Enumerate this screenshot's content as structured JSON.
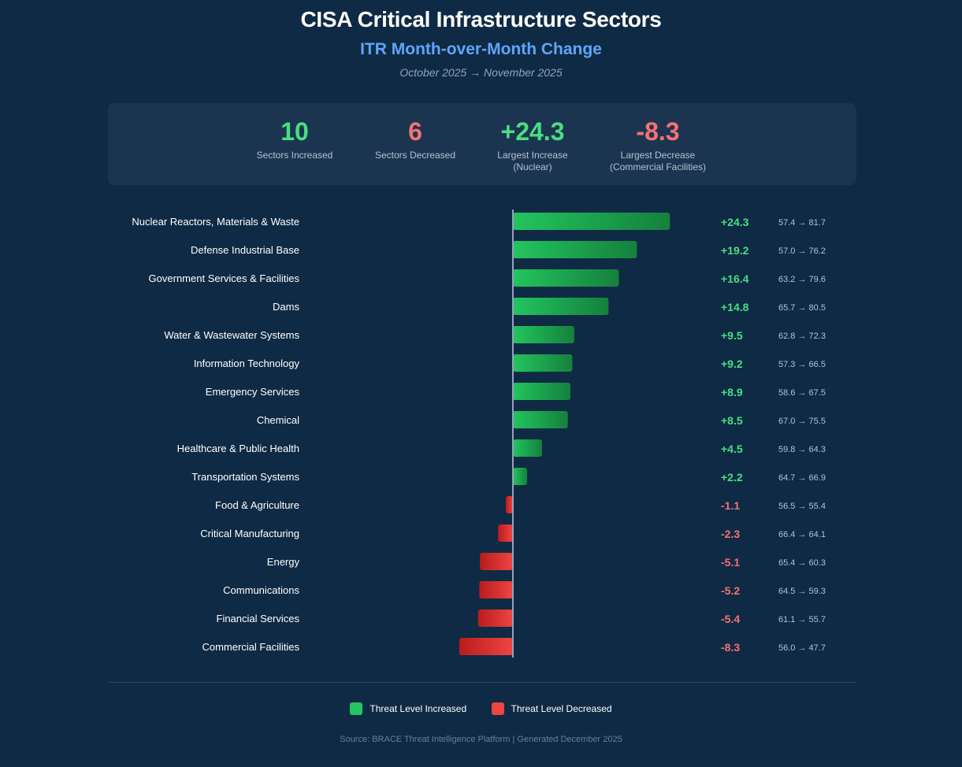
{
  "header": {
    "title": "CISA Critical Infrastructure Sectors",
    "subtitle": "ITR Month-over-Month Change",
    "period": "October 2025 → November 2025"
  },
  "summary": {
    "increased": {
      "value": "10",
      "label": "Sectors Increased"
    },
    "decreased": {
      "value": "6",
      "label": "Sectors Decreased"
    },
    "largest_increase": {
      "value": "+24.3",
      "label": "Largest Increase",
      "sublabel": "(Nuclear)"
    },
    "largest_decrease": {
      "value": "-8.3",
      "label": "Largest Decrease",
      "sublabel": "(Commercial Facilities)"
    }
  },
  "chart_data": {
    "type": "bar",
    "orientation": "horizontal",
    "title": "ITR Month-over-Month Change",
    "categories": [
      "Nuclear Reactors, Materials & Waste",
      "Defense Industrial Base",
      "Government Services & Facilities",
      "Dams",
      "Water & Wastewater Systems",
      "Information Technology",
      "Emergency Services",
      "Chemical",
      "Healthcare & Public Health",
      "Transportation Systems",
      "Food & Agriculture",
      "Critical Manufacturing",
      "Energy",
      "Communications",
      "Financial Services",
      "Commercial Facilities"
    ],
    "values": [
      24.3,
      19.2,
      16.4,
      14.8,
      9.5,
      9.2,
      8.9,
      8.5,
      4.5,
      2.2,
      -1.1,
      -2.3,
      -5.1,
      -5.2,
      -5.4,
      -8.3
    ],
    "change_labels": [
      "+24.3",
      "+19.2",
      "+16.4",
      "+14.8",
      "+9.5",
      "+9.2",
      "+8.9",
      "+8.5",
      "+4.5",
      "+2.2",
      "-1.1",
      "-2.3",
      "-5.1",
      "-5.2",
      "-5.4",
      "-8.3"
    ],
    "transitions": [
      "57.4 → 81.7",
      "57.0 → 76.2",
      "63.2 → 79.6",
      "65.7 → 80.5",
      "62.8 → 72.3",
      "57.3 → 66.5",
      "58.6 → 67.5",
      "67.0 → 75.5",
      "59.8 → 64.3",
      "64.7 → 66.9",
      "56.5 → 55.4",
      "66.4 → 64.1",
      "65.4 → 60.3",
      "64.5 → 59.3",
      "61.1 → 55.7",
      "56.0 → 47.7"
    ],
    "xlim": [
      -8.3,
      24.3
    ],
    "colors": {
      "increase": "#22c55e",
      "decrease": "#ef4444",
      "increase_text": "#4ade80",
      "decrease_text": "#f87171",
      "zero_line": "#94a3b8"
    }
  },
  "legend": {
    "increase_label": "Threat Level Increased",
    "decrease_label": "Threat Level Decreased"
  },
  "footer": {
    "source": "Source: BRACE Threat Intelligence Platform | Generated December 2025"
  }
}
